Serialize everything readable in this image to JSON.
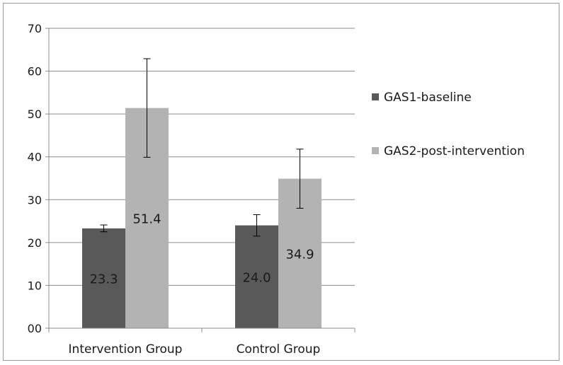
{
  "chart_data": {
    "type": "bar",
    "categories": [
      "Intervention Group",
      "Control Group"
    ],
    "series": [
      {
        "name": "GAS1-baseline",
        "color": "#595959",
        "values": [
          23.3,
          24.0
        ],
        "labels": [
          "23.3",
          "24.0"
        ],
        "error_low": [
          22.5,
          21.5
        ],
        "error_high": [
          24.1,
          26.5
        ]
      },
      {
        "name": "GAS2-post-intervention",
        "color": "#b3b3b3",
        "values": [
          51.4,
          34.9
        ],
        "labels": [
          "51.4",
          "34.9"
        ],
        "error_low": [
          39.9,
          28.0
        ],
        "error_high": [
          62.9,
          41.8
        ]
      }
    ],
    "ylim": [
      0,
      70
    ],
    "yticks": [
      0,
      10,
      20,
      30,
      40,
      50,
      60,
      70
    ],
    "ytick_labels": [
      "00",
      "10",
      "20",
      "30",
      "40",
      "50",
      "60",
      "70"
    ],
    "grid": true,
    "legend": "right"
  }
}
